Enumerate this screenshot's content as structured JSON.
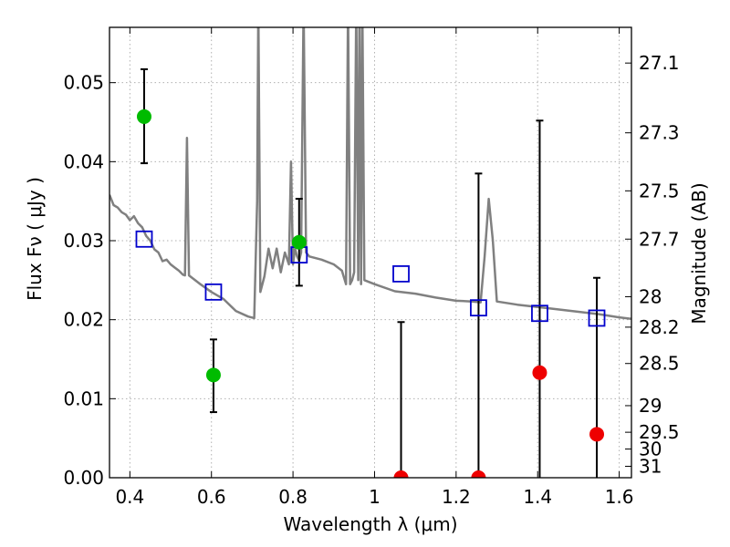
{
  "chart_data": {
    "type": "scatter",
    "title": "",
    "xlabel": "Wavelength  λ (μm)",
    "ylabel": "Flux  Fν  ( μJy )",
    "y2label": "Magnitude (AB)",
    "xlim": [
      0.35,
      1.63
    ],
    "ylim": [
      0.0,
      0.057
    ],
    "grid": true,
    "x_ticks": [
      "0.4",
      "0.6",
      "0.8",
      "1",
      "1.2",
      "1.4",
      "1.6"
    ],
    "y_ticks": [
      "0.00",
      "0.01",
      "0.02",
      "0.03",
      "0.04",
      "0.05"
    ],
    "y2_ticks": [
      "27.1",
      "27.3",
      "27.5",
      "27.7",
      "28",
      "28.2",
      "28.5",
      "29",
      "29.5",
      "30",
      "31"
    ],
    "series": [
      {
        "kind": "line",
        "color": "#808080",
        "points": [
          [
            0.35,
            0.0358
          ],
          [
            0.36,
            0.0345
          ],
          [
            0.37,
            0.0342
          ],
          [
            0.38,
            0.0336
          ],
          [
            0.39,
            0.0333
          ],
          [
            0.4,
            0.0326
          ],
          [
            0.41,
            0.0331
          ],
          [
            0.42,
            0.0322
          ],
          [
            0.43,
            0.0317
          ],
          [
            0.44,
            0.0306
          ],
          [
            0.45,
            0.03
          ],
          [
            0.46,
            0.0289
          ],
          [
            0.47,
            0.0285
          ],
          [
            0.48,
            0.0274
          ],
          [
            0.49,
            0.0276
          ],
          [
            0.5,
            0.027
          ],
          [
            0.51,
            0.0266
          ],
          [
            0.52,
            0.0262
          ],
          [
            0.53,
            0.0257
          ],
          [
            0.535,
            0.0256
          ],
          [
            0.54,
            0.043
          ],
          [
            0.545,
            0.0256
          ],
          [
            0.55,
            0.0254
          ],
          [
            0.57,
            0.0246
          ],
          [
            0.6,
            0.0235
          ],
          [
            0.63,
            0.0226
          ],
          [
            0.66,
            0.0211
          ],
          [
            0.69,
            0.0204
          ],
          [
            0.705,
            0.0202
          ],
          [
            0.712,
            0.035
          ],
          [
            0.715,
            0.06
          ],
          [
            0.72,
            0.0235
          ],
          [
            0.73,
            0.0255
          ],
          [
            0.74,
            0.029
          ],
          [
            0.75,
            0.0265
          ],
          [
            0.76,
            0.029
          ],
          [
            0.77,
            0.026
          ],
          [
            0.78,
            0.0285
          ],
          [
            0.79,
            0.027
          ],
          [
            0.795,
            0.04
          ],
          [
            0.8,
            0.027
          ],
          [
            0.805,
            0.029
          ],
          [
            0.81,
            0.028
          ],
          [
            0.815,
            0.0275
          ],
          [
            0.82,
            0.0285
          ],
          [
            0.826,
            0.06
          ],
          [
            0.832,
            0.0285
          ],
          [
            0.84,
            0.028
          ],
          [
            0.87,
            0.0276
          ],
          [
            0.9,
            0.027
          ],
          [
            0.92,
            0.0262
          ],
          [
            0.93,
            0.0245
          ],
          [
            0.935,
            0.06
          ],
          [
            0.94,
            0.0245
          ],
          [
            0.945,
            0.025
          ],
          [
            0.95,
            0.026
          ],
          [
            0.955,
            0.06
          ],
          [
            0.96,
            0.025
          ],
          [
            0.963,
            0.06
          ],
          [
            0.967,
            0.0245
          ],
          [
            0.97,
            0.06
          ],
          [
            0.975,
            0.025
          ],
          [
            1.0,
            0.0245
          ],
          [
            1.05,
            0.0236
          ],
          [
            1.1,
            0.0233
          ],
          [
            1.15,
            0.0228
          ],
          [
            1.2,
            0.0224
          ],
          [
            1.24,
            0.0223
          ],
          [
            1.26,
            0.0222
          ],
          [
            1.27,
            0.028
          ],
          [
            1.28,
            0.0353
          ],
          [
            1.29,
            0.03
          ],
          [
            1.3,
            0.0223
          ],
          [
            1.35,
            0.0219
          ],
          [
            1.4,
            0.0216
          ],
          [
            1.45,
            0.0213
          ],
          [
            1.5,
            0.021
          ],
          [
            1.55,
            0.0207
          ],
          [
            1.6,
            0.0203
          ],
          [
            1.63,
            0.0201
          ]
        ]
      },
      {
        "kind": "open-square",
        "color": "#0000cc",
        "x": [
          0.435,
          0.605,
          0.815,
          1.065,
          1.255,
          1.405,
          1.545
        ],
        "y": [
          0.0302,
          0.0235,
          0.0282,
          0.0258,
          0.0215,
          0.0208,
          0.0202
        ]
      },
      {
        "kind": "filled-circle",
        "color": "#00bb00",
        "x": [
          0.435,
          0.605,
          0.815
        ],
        "y": [
          0.0457,
          0.013,
          0.0298
        ],
        "yerr_low": [
          0.0398,
          0.0083,
          0.0243
        ],
        "yerr_high": [
          0.0517,
          0.0175,
          0.0353
        ]
      },
      {
        "kind": "filled-circle",
        "color": "#ee0000",
        "x": [
          1.065,
          1.255,
          1.405,
          1.545
        ],
        "y": [
          0.0,
          0.0,
          0.0133,
          0.0055
        ],
        "yerr_low": [
          0.0,
          0.0,
          0.0,
          0.0
        ],
        "yerr_high": [
          0.0197,
          0.0385,
          0.0452,
          0.0253
        ]
      }
    ]
  },
  "colors": {
    "grid": "#b0b0b0",
    "axes": "#000000",
    "errorbar": "#000000"
  }
}
